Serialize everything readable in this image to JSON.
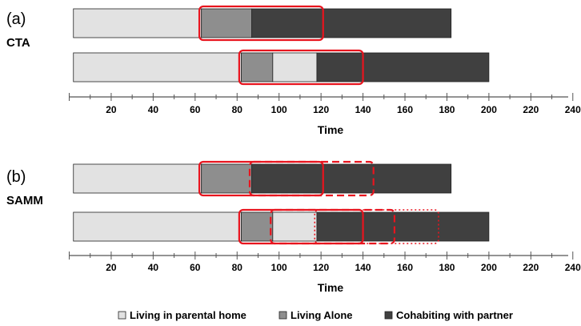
{
  "chart_data": {
    "type": "bar",
    "orientation": "horizontal-stacked",
    "states": [
      {
        "name": "Living in parental home",
        "color": "#e2e2e2"
      },
      {
        "name": "Living Alone",
        "color": "#8e8e8e"
      },
      {
        "name": "Cohabiting with partner",
        "color": "#404040"
      }
    ],
    "xlim": [
      0,
      240
    ],
    "xticks": [
      20,
      40,
      60,
      80,
      100,
      120,
      140,
      160,
      180,
      200,
      220,
      240
    ],
    "xlabel": "Time",
    "panels": [
      {
        "label": "(a)",
        "method": "CTA",
        "sequences": [
          {
            "segments": [
              {
                "state": "Living in parental home",
                "start": 2,
                "end": 63
              },
              {
                "state": "Living Alone",
                "start": 63,
                "end": 87
              },
              {
                "state": "Cohabiting with partner",
                "start": 87,
                "end": 182
              }
            ]
          },
          {
            "segments": [
              {
                "state": "Living in parental home",
                "start": 2,
                "end": 82
              },
              {
                "state": "Living Alone",
                "start": 82,
                "end": 97
              },
              {
                "state": "Living in parental home",
                "start": 97,
                "end": 118
              },
              {
                "state": "Cohabiting with partner",
                "start": 118,
                "end": 200
              }
            ]
          }
        ],
        "highlights": [
          {
            "row": 0,
            "start": 62,
            "end": 121,
            "style": "solid"
          },
          {
            "row": 1,
            "start": 81,
            "end": 140,
            "style": "solid"
          }
        ]
      },
      {
        "label": "(b)",
        "method": "SAMM",
        "sequences": [
          {
            "segments": [
              {
                "state": "Living in parental home",
                "start": 2,
                "end": 63
              },
              {
                "state": "Living Alone",
                "start": 63,
                "end": 87
              },
              {
                "state": "Cohabiting with partner",
                "start": 87,
                "end": 182
              }
            ]
          },
          {
            "segments": [
              {
                "state": "Living in parental home",
                "start": 2,
                "end": 82
              },
              {
                "state": "Living Alone",
                "start": 82,
                "end": 97
              },
              {
                "state": "Living in parental home",
                "start": 97,
                "end": 118
              },
              {
                "state": "Cohabiting with partner",
                "start": 118,
                "end": 200
              }
            ]
          }
        ],
        "highlights": [
          {
            "row": 0,
            "start": 62,
            "end": 121,
            "style": "solid"
          },
          {
            "row": 0,
            "start": 86,
            "end": 145,
            "style": "dashed"
          },
          {
            "row": 1,
            "start": 81,
            "end": 140,
            "style": "solid"
          },
          {
            "row": 1,
            "start": 96,
            "end": 155,
            "style": "dashed"
          },
          {
            "row": 1,
            "start": 117,
            "end": 176,
            "style": "dotted"
          }
        ]
      }
    ],
    "highlight_color": "#e8141e"
  }
}
